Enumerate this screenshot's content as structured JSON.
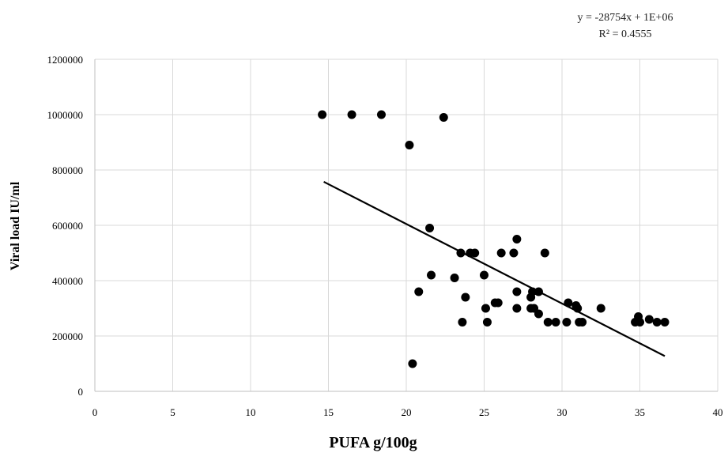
{
  "chart_data": {
    "type": "scatter",
    "title": "",
    "xlabel": "PUFA g/100g",
    "ylabel": "Viral load IU/ml",
    "xlim": [
      0,
      40
    ],
    "ylim": [
      0,
      1200000
    ],
    "xticks": [
      "0",
      "5",
      "10",
      "15",
      "20",
      "25",
      "30",
      "35",
      "40"
    ],
    "yticks": [
      "0",
      "200000",
      "400000",
      "600000",
      "800000",
      "1000000",
      "1200000"
    ],
    "grid": true,
    "legend": "none",
    "series": [
      {
        "points": [
          [
            14.6,
            1000000
          ],
          [
            16.5,
            1000000
          ],
          [
            18.4,
            1000000
          ],
          [
            22.4,
            990000
          ],
          [
            20.2,
            890000
          ],
          [
            21.5,
            590000
          ],
          [
            27.1,
            550000
          ],
          [
            23.5,
            500000
          ],
          [
            24.1,
            500000
          ],
          [
            24.4,
            500000
          ],
          [
            26.1,
            500000
          ],
          [
            26.9,
            500000
          ],
          [
            28.9,
            500000
          ],
          [
            21.6,
            420000
          ],
          [
            25.0,
            420000
          ],
          [
            23.1,
            410000
          ],
          [
            20.8,
            360000
          ],
          [
            27.1,
            360000
          ],
          [
            28.1,
            360000
          ],
          [
            28.5,
            360000
          ],
          [
            23.8,
            340000
          ],
          [
            28.0,
            340000
          ],
          [
            25.7,
            320000
          ],
          [
            25.9,
            320000
          ],
          [
            30.4,
            320000
          ],
          [
            30.9,
            310000
          ],
          [
            25.1,
            300000
          ],
          [
            27.1,
            300000
          ],
          [
            28.0,
            300000
          ],
          [
            28.2,
            300000
          ],
          [
            31.0,
            300000
          ],
          [
            32.5,
            300000
          ],
          [
            28.5,
            280000
          ],
          [
            34.9,
            270000
          ],
          [
            35.6,
            260000
          ],
          [
            23.6,
            250000
          ],
          [
            25.2,
            250000
          ],
          [
            29.1,
            250000
          ],
          [
            29.6,
            250000
          ],
          [
            30.3,
            250000
          ],
          [
            31.1,
            250000
          ],
          [
            31.3,
            250000
          ],
          [
            34.7,
            250000
          ],
          [
            35.0,
            250000
          ],
          [
            36.1,
            250000
          ],
          [
            36.6,
            250000
          ],
          [
            20.4,
            100000
          ]
        ]
      }
    ],
    "trendline": {
      "type": "linear",
      "x_range": [
        14.7,
        36.6
      ],
      "slope": -28754,
      "intercept": 1180000,
      "equation_label": "y = -28754x + 1E+06",
      "r2_label": "R² = 0.4555"
    }
  }
}
